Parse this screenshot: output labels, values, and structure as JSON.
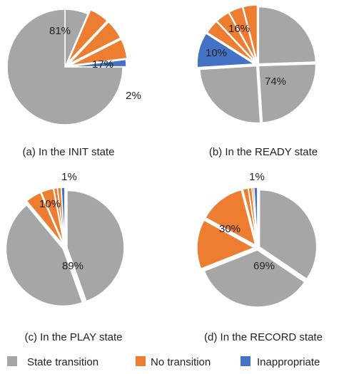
{
  "colors": {
    "state_transition": "#a6a6a6",
    "no_transition": "#ed7d31",
    "inappropriate": "#4472c4",
    "stroke": "#ffffff"
  },
  "legend": [
    {
      "label": "State transition",
      "color": "#a6a6a6"
    },
    {
      "label": "No transition",
      "color": "#ed7d31"
    },
    {
      "label": "Inappropriate",
      "color": "#4472c4"
    }
  ],
  "chart_data": [
    {
      "type": "pie",
      "title": "(a) In the INIT state",
      "labels": [
        "81%",
        "17%",
        "2%"
      ],
      "slices": [
        {
          "category": "State transition",
          "value": 0.065,
          "color": "#a6a6a6"
        },
        {
          "category": "No transition",
          "value": 0.055,
          "color": "#ed7d31"
        },
        {
          "category": "No transition",
          "value": 0.055,
          "color": "#ed7d31"
        },
        {
          "category": "No transition",
          "value": 0.055,
          "color": "#ed7d31"
        },
        {
          "category": "Inappropriate",
          "value": 0.02,
          "color": "#4472c4"
        },
        {
          "category": "State transition",
          "value": 0.75,
          "color": "#a6a6a6"
        }
      ]
    },
    {
      "type": "pie",
      "title": "(b) In the READY state",
      "labels": [
        "16%",
        "10%",
        "74%"
      ],
      "slices": [
        {
          "category": "State transition",
          "value": 0.245,
          "color": "#a6a6a6"
        },
        {
          "category": "State transition",
          "value": 0.245,
          "color": "#a6a6a6"
        },
        {
          "category": "State transition",
          "value": 0.25,
          "color": "#a6a6a6"
        },
        {
          "category": "Inappropriate",
          "value": 0.1,
          "color": "#4472c4"
        },
        {
          "category": "No transition",
          "value": 0.04,
          "color": "#ed7d31"
        },
        {
          "category": "No transition",
          "value": 0.04,
          "color": "#ed7d31"
        },
        {
          "category": "No transition",
          "value": 0.04,
          "color": "#ed7d31"
        },
        {
          "category": "No transition",
          "value": 0.04,
          "color": "#ed7d31"
        }
      ]
    },
    {
      "type": "pie",
      "title": "(c) In the PLAY state",
      "labels": [
        "1%",
        "10%",
        "89%"
      ],
      "slices": [
        {
          "category": "State transition",
          "value": 0.445,
          "color": "#a6a6a6"
        },
        {
          "category": "State transition",
          "value": 0.445,
          "color": "#a6a6a6"
        },
        {
          "category": "No transition",
          "value": 0.045,
          "color": "#ed7d31"
        },
        {
          "category": "No transition",
          "value": 0.035,
          "color": "#ed7d31"
        },
        {
          "category": "No transition",
          "value": 0.01,
          "color": "#ed7d31"
        },
        {
          "category": "No transition",
          "value": 0.01,
          "color": "#ed7d31"
        },
        {
          "category": "Inappropriate",
          "value": 0.01,
          "color": "#4472c4"
        }
      ]
    },
    {
      "type": "pie",
      "title": "(d) In the RECORD state",
      "labels": [
        "1%",
        "30%",
        "69%"
      ],
      "slices": [
        {
          "category": "State transition",
          "value": 0.345,
          "color": "#a6a6a6"
        },
        {
          "category": "State transition",
          "value": 0.345,
          "color": "#a6a6a6"
        },
        {
          "category": "No transition",
          "value": 0.14,
          "color": "#ed7d31"
        },
        {
          "category": "No transition",
          "value": 0.13,
          "color": "#ed7d31"
        },
        {
          "category": "No transition",
          "value": 0.015,
          "color": "#ed7d31"
        },
        {
          "category": "No transition",
          "value": 0.01,
          "color": "#ed7d31"
        },
        {
          "category": "No transition",
          "value": 0.005,
          "color": "#ed7d31"
        },
        {
          "category": "Inappropriate",
          "value": 0.01,
          "color": "#4472c4"
        }
      ]
    }
  ]
}
